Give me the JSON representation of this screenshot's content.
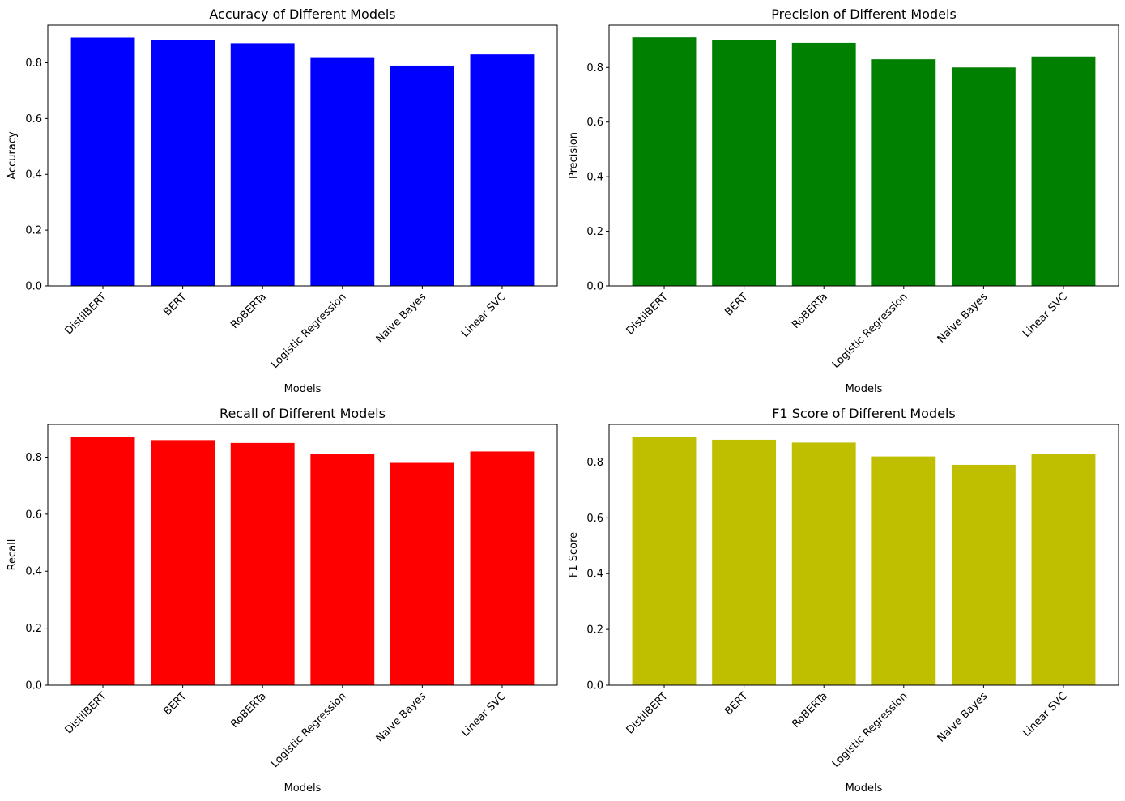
{
  "chart_data": [
    {
      "type": "bar",
      "title": "Accuracy of Different Models",
      "xlabel": "Models",
      "ylabel": "Accuracy",
      "categories": [
        "DistilBERT",
        "BERT",
        "RoBERTa",
        "Logistic Regression",
        "Naive Bayes",
        "Linear SVC"
      ],
      "values": [
        0.89,
        0.88,
        0.87,
        0.82,
        0.79,
        0.83
      ],
      "color": "#0000ff",
      "ylim": [
        0,
        0.935
      ],
      "yticks": [
        "0.0",
        "0.2",
        "0.4",
        "0.6",
        "0.8"
      ],
      "grid": false
    },
    {
      "type": "bar",
      "title": "Precision of Different Models",
      "xlabel": "Models",
      "ylabel": "Precision",
      "categories": [
        "DistilBERT",
        "BERT",
        "RoBERTa",
        "Logistic Regression",
        "Naive Bayes",
        "Linear SVC"
      ],
      "values": [
        0.91,
        0.9,
        0.89,
        0.83,
        0.8,
        0.84
      ],
      "color": "#008000",
      "ylim": [
        0,
        0.955
      ],
      "yticks": [
        "0.0",
        "0.2",
        "0.4",
        "0.6",
        "0.8"
      ],
      "grid": false
    },
    {
      "type": "bar",
      "title": "Recall of Different Models",
      "xlabel": "Models",
      "ylabel": "Recall",
      "categories": [
        "DistilBERT",
        "BERT",
        "RoBERTa",
        "Logistic Regression",
        "Naive Bayes",
        "Linear SVC"
      ],
      "values": [
        0.87,
        0.86,
        0.85,
        0.81,
        0.78,
        0.82
      ],
      "color": "#ff0000",
      "ylim": [
        0,
        0.915
      ],
      "yticks": [
        "0.0",
        "0.2",
        "0.4",
        "0.6",
        "0.8"
      ],
      "grid": false
    },
    {
      "type": "bar",
      "title": "F1 Score of Different Models",
      "xlabel": "Models",
      "ylabel": "F1 Score",
      "categories": [
        "DistilBERT",
        "BERT",
        "RoBERTa",
        "Logistic Regression",
        "Naive Bayes",
        "Linear SVC"
      ],
      "values": [
        0.89,
        0.88,
        0.87,
        0.82,
        0.79,
        0.83
      ],
      "color": "#bfbf00",
      "ylim": [
        0,
        0.935
      ],
      "yticks": [
        "0.0",
        "0.2",
        "0.4",
        "0.6",
        "0.8"
      ],
      "grid": false
    }
  ]
}
